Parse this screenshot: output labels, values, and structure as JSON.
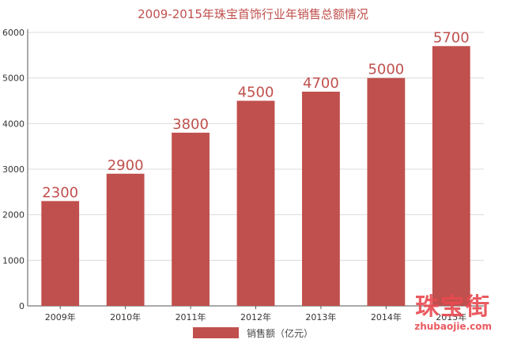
{
  "colors": {
    "bar": "#c0504d",
    "title": "#c0504d",
    "grid": "#dcdcdc",
    "axis": "#555555"
  },
  "chart_data": {
    "type": "bar",
    "title": "2009-2015年珠宝首饰行业年销售总额情况",
    "categories": [
      "2009年",
      "2010年",
      "2011年",
      "2012年",
      "2013年",
      "2014年",
      "2015年"
    ],
    "series": [
      {
        "name": "销售额（亿元）",
        "values": [
          2300,
          2900,
          3800,
          4500,
          4700,
          5000,
          5700
        ]
      }
    ],
    "data_labels": [
      "2300",
      "2900",
      "3800",
      "4500",
      "4700",
      "5000",
      "5700"
    ],
    "yticks": [
      0,
      1000,
      2000,
      3000,
      4000,
      5000,
      6000
    ],
    "ylim": [
      0,
      6000
    ],
    "grid": true,
    "legend": "bottom"
  },
  "legend": {
    "label": "销售额（亿元）"
  },
  "watermark": {
    "main": "珠宝街",
    "sub": "zhubaojie.com"
  }
}
